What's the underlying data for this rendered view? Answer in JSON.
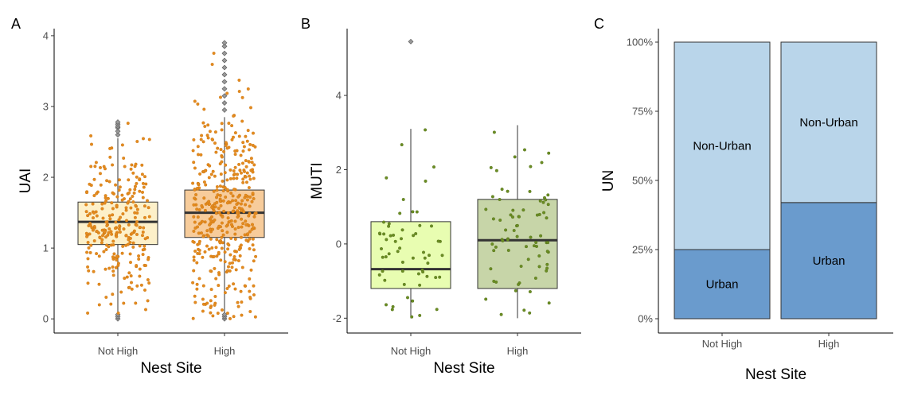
{
  "chart_data": [
    {
      "panel": "A",
      "type": "box",
      "xlabel": "Nest Site",
      "ylabel": "UAI",
      "ylim": [
        -0.2,
        4.1
      ],
      "yticks": [
        0,
        1,
        2,
        3,
        4
      ],
      "categories": [
        "Not High",
        "High"
      ],
      "boxes": [
        {
          "category": "Not High",
          "q1": 1.05,
          "median": 1.37,
          "q3": 1.65,
          "whisker_low": 0.0,
          "whisker_high": 2.55,
          "fill": "#fdf0c9",
          "outliers": [
            2.6,
            2.65,
            2.7,
            2.72,
            2.75,
            2.78
          ]
        },
        {
          "category": "High",
          "q1": 1.15,
          "median": 1.5,
          "q3": 1.82,
          "whisker_low": 0.0,
          "whisker_high": 2.85,
          "fill": "#f7cc9b",
          "outliers": [
            2.95,
            3.05,
            3.15,
            3.25,
            3.35,
            3.45,
            3.55,
            3.65,
            3.75,
            3.85,
            3.9
          ]
        },
        {
          "category": "High",
          "role": "low-outliers",
          "values": []
        }
      ],
      "points": {
        "color": "#e48b1f",
        "n_per_category": [
          270,
          420
        ],
        "mean": [
          1.35,
          1.5
        ],
        "sd": [
          0.55,
          0.7
        ],
        "max": [
          2.8,
          3.9
        ]
      }
    },
    {
      "panel": "B",
      "type": "box",
      "xlabel": "Nest Site",
      "ylabel": "MUTI",
      "ylim": [
        -2.4,
        5.8
      ],
      "yticks": [
        -2,
        0,
        2,
        4
      ],
      "categories": [
        "Not High",
        "High"
      ],
      "boxes": [
        {
          "category": "Not High",
          "q1": -1.2,
          "median": -0.68,
          "q3": 0.6,
          "whisker_low": -2.0,
          "whisker_high": 3.1,
          "fill": "#e8fdb1",
          "outliers": [
            5.45
          ]
        },
        {
          "category": "High",
          "q1": -1.2,
          "median": 0.1,
          "q3": 1.2,
          "whisker_low": -2.0,
          "whisker_high": 3.2,
          "fill": "#c7d5a8",
          "outliers": []
        }
      ],
      "points": {
        "color": "#6b8e23",
        "n_per_category": [
          60,
          75
        ],
        "mean": [
          -0.4,
          0.1
        ],
        "sd": [
          1.1,
          1.2
        ],
        "max": [
          5.5,
          3.2
        ]
      }
    },
    {
      "panel": "C",
      "type": "stacked-bar",
      "xlabel": "Nest Site",
      "ylabel": "UN",
      "ylim": [
        0,
        1
      ],
      "yticks": [
        "0%",
        "25%",
        "50%",
        "75%",
        "100%"
      ],
      "categories": [
        "Not High",
        "High"
      ],
      "series": [
        {
          "name": "Urban",
          "values": [
            0.25,
            0.42
          ],
          "color": "#6a9bcd"
        },
        {
          "name": "Non-Urban",
          "values": [
            0.75,
            0.58
          ],
          "color": "#b9d5ea"
        }
      ]
    }
  ]
}
